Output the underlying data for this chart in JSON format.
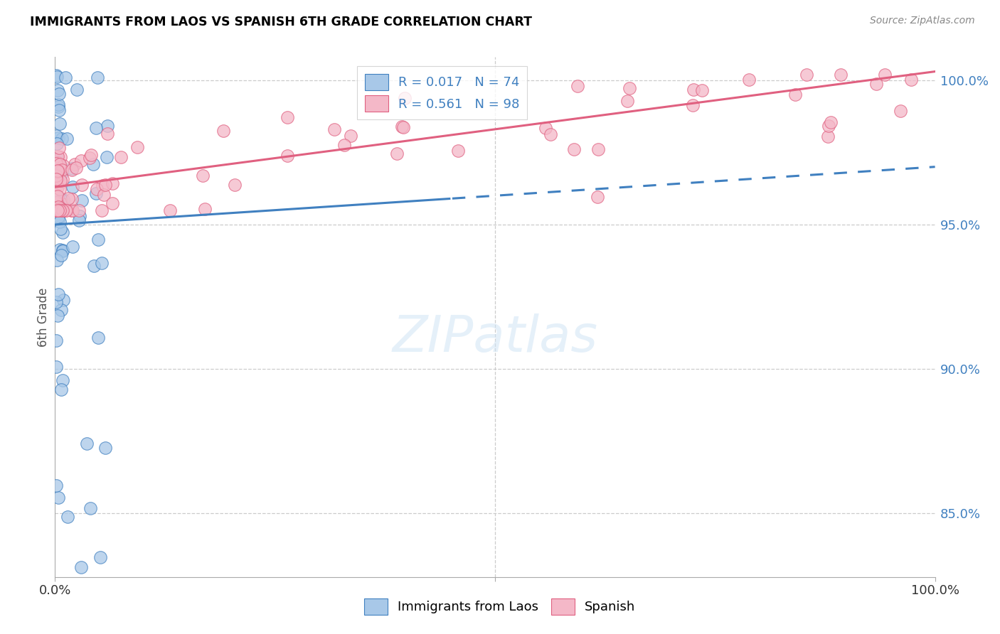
{
  "title": "IMMIGRANTS FROM LAOS VS SPANISH 6TH GRADE CORRELATION CHART",
  "source": "Source: ZipAtlas.com",
  "ylabel": "6th Grade",
  "ytick_labels": [
    "85.0%",
    "90.0%",
    "95.0%",
    "100.0%"
  ],
  "ytick_values": [
    0.85,
    0.9,
    0.95,
    1.0
  ],
  "xlim": [
    0.0,
    1.0
  ],
  "ylim": [
    0.828,
    1.008
  ],
  "legend_r_blue": "R = 0.017",
  "legend_n_blue": "N = 74",
  "legend_r_pink": "R = 0.561",
  "legend_n_pink": "N = 98",
  "blue_color": "#a8c8e8",
  "pink_color": "#f4b8c8",
  "blue_line_color": "#4080c0",
  "pink_line_color": "#e06080",
  "text_blue": "#4080c0",
  "background": "#ffffff",
  "grid_color": "#cccccc",
  "r_blue": 0.017,
  "r_pink": 0.561
}
